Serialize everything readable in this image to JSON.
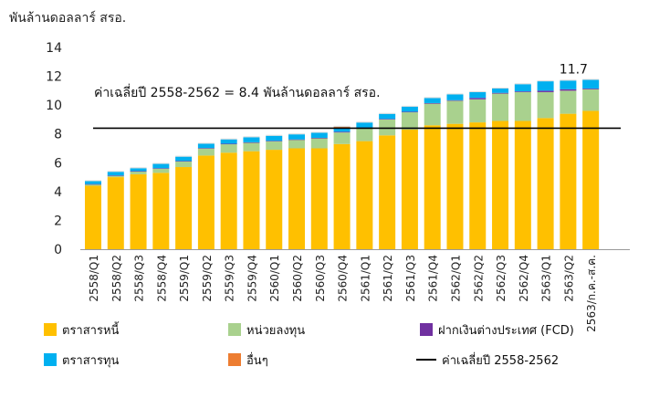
{
  "chart_data": {
    "type": "bar",
    "stacked": true,
    "unit_label": "พันล้านดอลลาร์ สรอ.",
    "ylim": [
      0,
      14
    ],
    "yticks": [
      0,
      2,
      4,
      6,
      8,
      10,
      12,
      14
    ],
    "grid": false,
    "categories": [
      "2558/Q1",
      "2558/Q2",
      "2558/Q3",
      "2558/Q4",
      "2559/Q1",
      "2559/Q2",
      "2559/Q3",
      "2559/Q4",
      "2560/Q1",
      "2560/Q2",
      "2560/Q3",
      "2560/Q4",
      "2561/Q1",
      "2561/Q2",
      "2561/Q3",
      "2561/Q4",
      "2562/Q1",
      "2562/Q2",
      "2562/Q3",
      "2562/Q4",
      "2563/Q1",
      "2563/Q2",
      "2563/ก.ค.-ส.ค."
    ],
    "series": [
      {
        "name": "ตราสารหนี้",
        "color": "#FFC000",
        "values": [
          4.4,
          5.0,
          5.2,
          5.3,
          5.7,
          6.5,
          6.7,
          6.8,
          6.9,
          7.0,
          7.0,
          7.3,
          7.5,
          7.9,
          8.3,
          8.6,
          8.7,
          8.8,
          8.9,
          8.9,
          9.1,
          9.4,
          9.6
        ]
      },
      {
        "name": "หน่วยลงทุน",
        "color": "#A9D18E",
        "values": [
          0.1,
          0.1,
          0.2,
          0.3,
          0.4,
          0.5,
          0.6,
          0.6,
          0.6,
          0.6,
          0.7,
          0.8,
          0.9,
          1.1,
          1.2,
          1.5,
          1.6,
          1.6,
          1.9,
          2.0,
          1.8,
          1.6,
          1.5
        ]
      },
      {
        "name": "ฝากเงินต่างประเทศ (FCD)",
        "color": "#7030A0",
        "values": [
          0.02,
          0.02,
          0.02,
          0.02,
          0.02,
          0.02,
          0.02,
          0.02,
          0.02,
          0.02,
          0.03,
          0.05,
          0.04,
          0.04,
          0.04,
          0.04,
          0.04,
          0.1,
          0.05,
          0.05,
          0.1,
          0.1,
          0.05
        ]
      },
      {
        "name": "ตราสารทุน",
        "color": "#00B0F0",
        "values": [
          0.2,
          0.25,
          0.2,
          0.3,
          0.3,
          0.3,
          0.3,
          0.35,
          0.35,
          0.35,
          0.35,
          0.3,
          0.35,
          0.35,
          0.35,
          0.35,
          0.4,
          0.4,
          0.3,
          0.5,
          0.65,
          0.6,
          0.6
        ]
      },
      {
        "name": "อื่นๆ",
        "color": "#ED7D31",
        "values": [
          0,
          0,
          0,
          0,
          0,
          0,
          0,
          0,
          0,
          0,
          0,
          0.05,
          0,
          0,
          0,
          0,
          0,
          0,
          0,
          0,
          0,
          0,
          0
        ]
      }
    ],
    "average_line": {
      "label": "ค่าเฉลี่ยปี 2558-2562",
      "value": 8.4
    },
    "annotations": [
      {
        "text": "ค่าเฉลี่ยปี 2558-2562 = 8.4 พันล้านดอลลาร์ สรอ."
      },
      {
        "text": "11.7",
        "category": "2563/Q2",
        "value": 11.7
      }
    ],
    "legend": {
      "placement": "bottom",
      "items": [
        {
          "label": "ตราสารหนี้",
          "kind": "box",
          "color": "#FFC000"
        },
        {
          "label": "หน่วยลงทุน",
          "kind": "box",
          "color": "#A9D18E"
        },
        {
          "label": "ฝากเงินต่างประเทศ (FCD)",
          "kind": "box",
          "color": "#7030A0"
        },
        {
          "label": "ตราสารทุน",
          "kind": "box",
          "color": "#00B0F0"
        },
        {
          "label": "อื่นๆ",
          "kind": "box",
          "color": "#ED7D31"
        },
        {
          "label": "ค่าเฉลี่ยปี 2558-2562",
          "kind": "line",
          "color": "#000000"
        }
      ]
    }
  }
}
